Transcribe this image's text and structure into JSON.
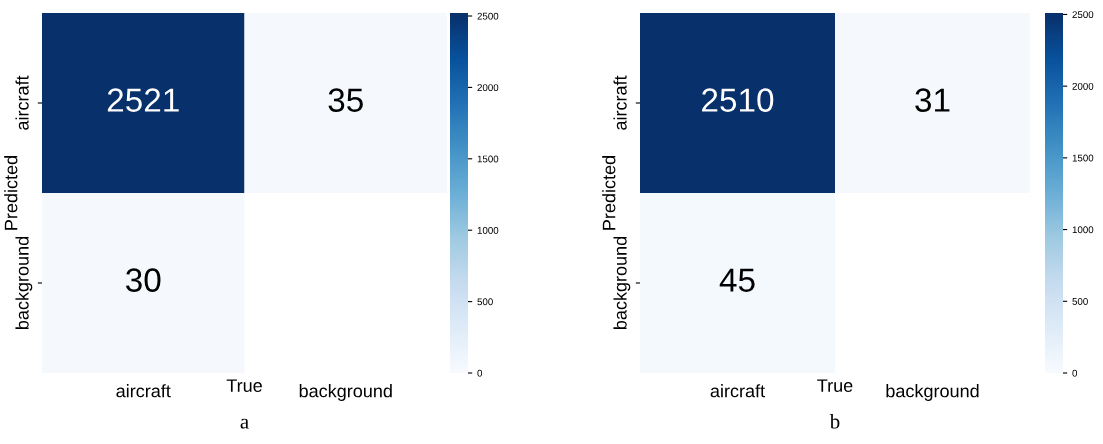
{
  "chart_data": [
    {
      "type": "heatmap",
      "categories": [
        "aircraft",
        "background"
      ],
      "y_categories": [
        "aircraft",
        "background"
      ],
      "cells": [
        [
          2521,
          35
        ],
        [
          30,
          null
        ]
      ],
      "xlabel": "True",
      "ylabel": "Predicted",
      "clim": [
        0,
        2521
      ],
      "cticks": [
        0,
        500,
        1000,
        1500,
        2000,
        2500
      ],
      "data_labels": true,
      "annotations": [
        "a"
      ]
    },
    {
      "type": "heatmap",
      "categories": [
        "aircraft",
        "background"
      ],
      "y_categories": [
        "aircraft",
        "background"
      ],
      "cells": [
        [
          2510,
          31
        ],
        [
          45,
          null
        ]
      ],
      "xlabel": "True",
      "ylabel": "Predicted",
      "clim": [
        0,
        2510
      ],
      "cticks": [
        0,
        500,
        1000,
        1500,
        2000,
        2500
      ],
      "data_labels": true,
      "annotations": [
        "b"
      ]
    }
  ]
}
